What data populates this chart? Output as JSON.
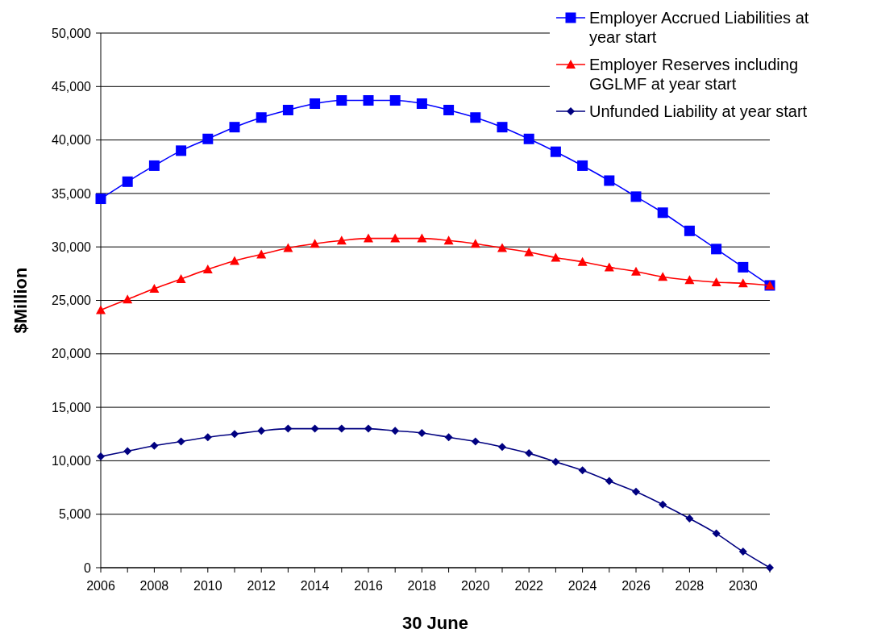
{
  "chart_data": {
    "type": "line",
    "xlabel": "30 June",
    "ylabel": "$Million",
    "x": [
      2006,
      2007,
      2008,
      2009,
      2010,
      2011,
      2012,
      2013,
      2014,
      2015,
      2016,
      2017,
      2018,
      2019,
      2020,
      2021,
      2022,
      2023,
      2024,
      2025,
      2026,
      2027,
      2028,
      2029,
      2030,
      2031
    ],
    "series": [
      {
        "name": "Employer Accrued Liabilities at year start",
        "color": "#0000ff",
        "marker": "square",
        "values": [
          34500,
          36100,
          37600,
          39000,
          40100,
          41200,
          42100,
          42800,
          43400,
          43700,
          43700,
          43700,
          43400,
          42800,
          42100,
          41200,
          40100,
          38900,
          37600,
          36200,
          34700,
          33200,
          31500,
          29800,
          28100,
          26400
        ]
      },
      {
        "name": "Employer Reserves including GGLMF at year start",
        "color": "#ff0000",
        "marker": "triangle",
        "values": [
          24100,
          25100,
          26100,
          27000,
          27900,
          28700,
          29300,
          29900,
          30300,
          30600,
          30800,
          30800,
          30800,
          30600,
          30300,
          29900,
          29500,
          29000,
          28600,
          28100,
          27700,
          27200,
          26900,
          26700,
          26600,
          26400
        ]
      },
      {
        "name": "Unfunded Liability at year start",
        "color": "#000080",
        "marker": "diamond",
        "values": [
          10400,
          10900,
          11400,
          11800,
          12200,
          12500,
          12800,
          13000,
          13000,
          13000,
          13000,
          12800,
          12600,
          12200,
          11800,
          11300,
          10700,
          9900,
          9100,
          8100,
          7100,
          5900,
          4600,
          3200,
          1500,
          0
        ]
      }
    ],
    "xlim": [
      2006,
      2031
    ],
    "xticks": [
      2006,
      {
        "value": 2007,
        "label": null
      },
      2008,
      {
        "value": 2009,
        "label": null
      },
      2010,
      {
        "value": 2011,
        "label": null
      },
      2012,
      {
        "value": 2013,
        "label": null
      },
      2014,
      {
        "value": 2015,
        "label": null
      },
      2016,
      {
        "value": 2017,
        "label": null
      },
      2018,
      {
        "value": 2019,
        "label": null
      },
      2020,
      {
        "value": 2021,
        "label": null
      },
      2022,
      {
        "value": 2023,
        "label": null
      },
      2024,
      {
        "value": 2025,
        "label": null
      },
      2026,
      {
        "value": 2027,
        "label": null
      },
      2028,
      {
        "value": 2029,
        "label": null
      },
      2030,
      {
        "value": 2031,
        "label": null
      }
    ],
    "ylim": [
      0,
      50000
    ],
    "yticks": [
      {
        "value": 0,
        "label": "0"
      },
      {
        "value": 5000,
        "label": "5,000"
      },
      {
        "value": 10000,
        "label": "10,000"
      },
      {
        "value": 15000,
        "label": "15,000"
      },
      {
        "value": 20000,
        "label": "20,000"
      },
      {
        "value": 25000,
        "label": "25,000"
      },
      {
        "value": 30000,
        "label": "30,000"
      },
      {
        "value": 35000,
        "label": "35,000"
      },
      {
        "value": 40000,
        "label": "40,000"
      },
      {
        "value": 45000,
        "label": "45,000"
      },
      {
        "value": 50000,
        "label": "50,000"
      }
    ],
    "grid": "y",
    "legend": "top right",
    "line_style": "solid"
  }
}
